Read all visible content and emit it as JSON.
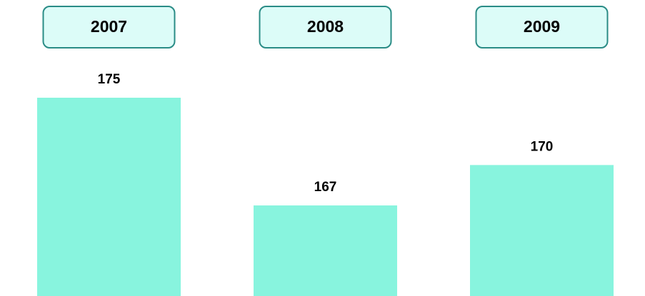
{
  "chart_data": {
    "type": "bar",
    "categories": [
      "2007",
      "2008",
      "2009"
    ],
    "values": [
      175,
      167,
      170
    ],
    "color": "#88f4de"
  }
}
